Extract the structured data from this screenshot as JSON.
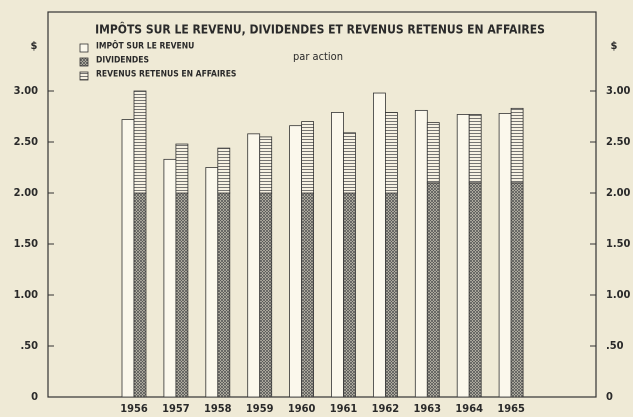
{
  "chart_data": {
    "type": "bar",
    "title": "IMPÔTS SUR LE REVENU, DIVIDENDES ET REVENUS RETENUS EN AFFAIRES",
    "subtitle": "par action",
    "y_label": "$",
    "y2_label": "$",
    "categories": [
      "1956",
      "1957",
      "1958",
      "1959",
      "1960",
      "1961",
      "1962",
      "1963",
      "1964",
      "1965"
    ],
    "series": [
      {
        "name": "IMPÔT SUR LE REVENU",
        "color": "#fbf8ec",
        "pattern": "none",
        "stacked": false,
        "values": [
          2.72,
          2.33,
          2.25,
          2.58,
          2.66,
          2.79,
          2.98,
          2.81,
          2.77,
          2.78
        ]
      },
      {
        "name": "DIVIDENDES",
        "color": "#555555",
        "pattern": "crosshatch",
        "stacked": true,
        "values": [
          2.0,
          2.0,
          2.0,
          2.0,
          2.0,
          2.0,
          2.0,
          2.1,
          2.1,
          2.1
        ]
      },
      {
        "name": "REVENUS RETENUS EN AFFAIRES",
        "color": "#555555",
        "pattern": "horizontal",
        "stacked": true,
        "values": [
          1.0,
          0.48,
          0.44,
          0.55,
          0.7,
          0.59,
          0.79,
          0.59,
          0.67,
          0.73
        ]
      }
    ],
    "ylim": [
      0,
      3.0
    ],
    "yticks": [
      0,
      {
        "value": 0.5,
        "label": ".50"
      },
      {
        "value": 1.0,
        "label": "1.00"
      },
      {
        "value": 1.5,
        "label": "1.50"
      },
      {
        "value": 2.0,
        "label": "2.00"
      },
      {
        "value": 2.5,
        "label": "2.50"
      },
      {
        "value": 3.0,
        "label": "3.00"
      }
    ],
    "y2lim": [
      0,
      3.0
    ],
    "y2ticks": [
      0,
      {
        "value": 0.5,
        "label": ".50"
      },
      {
        "value": 1.0,
        "label": "1.00"
      },
      {
        "value": 1.5,
        "label": "1.50"
      },
      {
        "value": 2.0,
        "label": "2.00"
      },
      {
        "value": 2.5,
        "label": "2.50"
      },
      {
        "value": 3.0,
        "label": "3.00"
      }
    ],
    "legend": "top-left",
    "grid": false
  }
}
